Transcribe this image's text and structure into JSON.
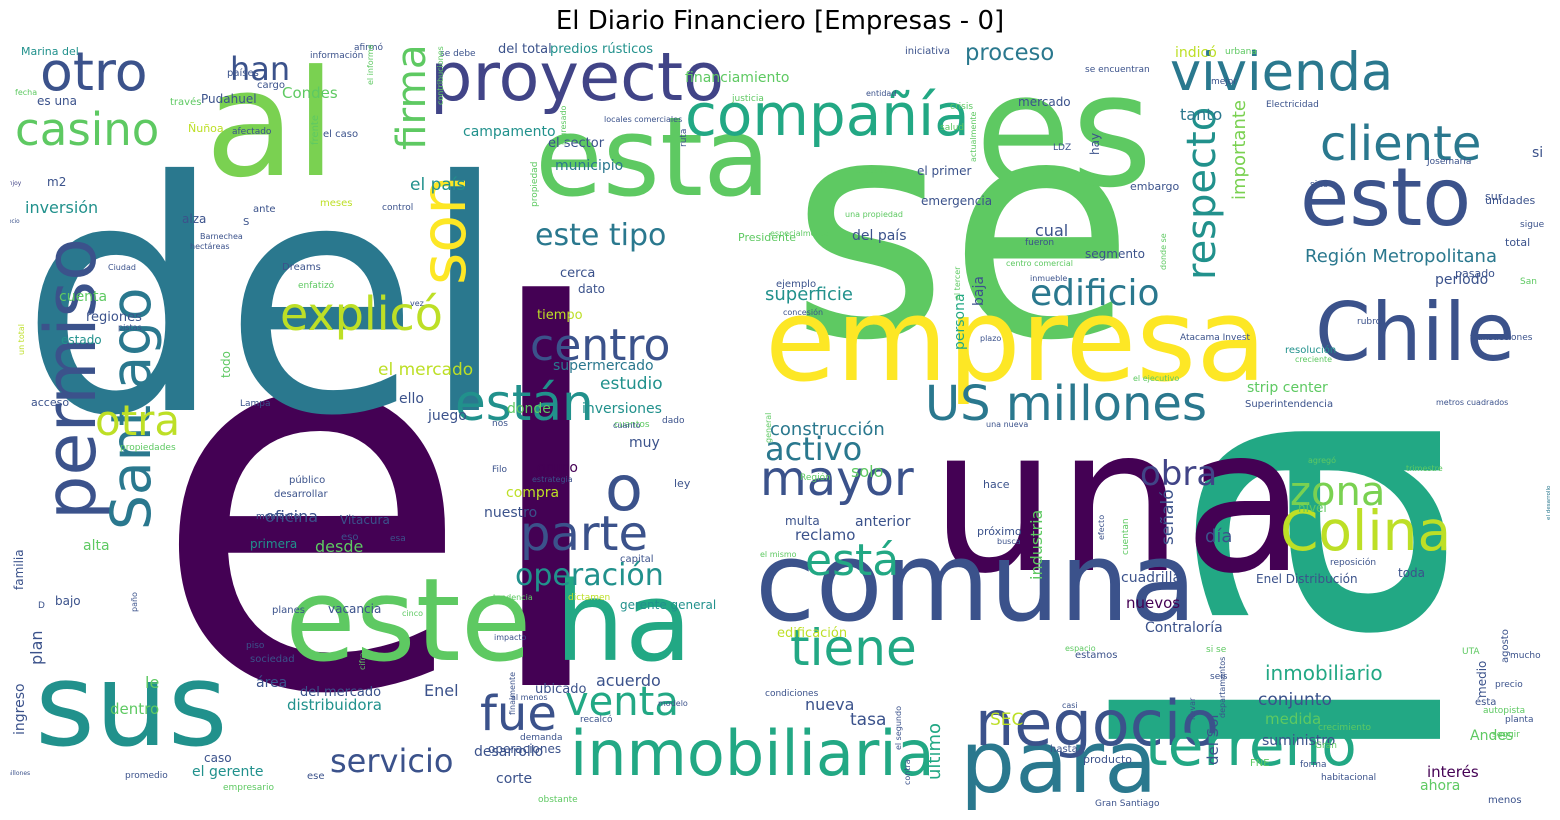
{
  "title": "El Diario Financiero [Empresas - 0]",
  "palette": [
    "#440154",
    "#3b528b",
    "#21918c",
    "#5ec962",
    "#fde725",
    "#2a788e",
    "#22a884",
    "#7ad151",
    "#414487",
    "#bddf26"
  ],
  "words": [
    {
      "text": "el",
      "color": "#440154"
    },
    {
      "text": "se",
      "color": "#5ec962"
    },
    {
      "text": "del",
      "color": "#2a788e"
    },
    {
      "text": "la",
      "color": "#22a884"
    },
    {
      "text": "una",
      "color": "#440154"
    },
    {
      "text": "para",
      "color": "#2a788e"
    },
    {
      "text": "proyecto",
      "color": "#414487"
    },
    {
      "text": "es",
      "color": "#5ec962"
    },
    {
      "text": "al",
      "color": "#7ad151"
    },
    {
      "text": "esta",
      "color": "#5ec962"
    },
    {
      "text": "empresa",
      "color": "#fde725"
    },
    {
      "text": "comuna",
      "color": "#3b528b"
    },
    {
      "text": "este",
      "color": "#5ec962"
    },
    {
      "text": "ha",
      "color": "#22a884"
    },
    {
      "text": "sus",
      "color": "#21918c"
    },
    {
      "text": "vivienda",
      "color": "#2a788e"
    },
    {
      "text": "otro",
      "color": "#3b528b"
    },
    {
      "text": "esto",
      "color": "#3b528b"
    },
    {
      "text": "Chile",
      "color": "#3b528b"
    },
    {
      "text": "permiso",
      "color": "#3b528b"
    },
    {
      "text": "inmobiliaria",
      "color": "#22a884"
    },
    {
      "text": "negocio",
      "color": "#3b528b"
    },
    {
      "text": "terreno",
      "color": "#22a884"
    },
    {
      "text": "millones",
      "color": "#3b528b"
    },
    {
      "text": "compañía",
      "color": "#22a884"
    },
    {
      "text": "son",
      "color": "#fde725"
    },
    {
      "text": "Santiago",
      "color": "#2a788e"
    },
    {
      "text": "proceso",
      "color": "#2a788e"
    },
    {
      "text": "cliente",
      "color": "#2a788e"
    },
    {
      "text": "US millones",
      "color": "#2a788e"
    },
    {
      "text": "Colina",
      "color": "#bddf26"
    },
    {
      "text": "o",
      "color": "#3b528b"
    },
    {
      "text": "parte",
      "color": "#3b528b"
    },
    {
      "text": "mayor",
      "color": "#3b528b"
    },
    {
      "text": "tiene",
      "color": "#22a884"
    },
    {
      "text": "están",
      "color": "#21918c"
    },
    {
      "text": "explicó",
      "color": "#bddf26"
    },
    {
      "text": "centro",
      "color": "#3b528b"
    },
    {
      "text": "casino",
      "color": "#5ec962"
    },
    {
      "text": "Enjoy",
      "color": "#414487"
    },
    {
      "text": "firma",
      "color": "#5ec962"
    },
    {
      "text": "respecto",
      "color": "#21918c"
    },
    {
      "text": "edificio",
      "color": "#2a788e"
    },
    {
      "text": "zona",
      "color": "#7ad151"
    },
    {
      "text": "fue",
      "color": "#3b528b"
    },
    {
      "text": "venta",
      "color": "#22a884"
    },
    {
      "text": "está",
      "color": "#22a884"
    },
    {
      "text": "operación",
      "color": "#21918c"
    },
    {
      "text": "otra",
      "color": "#bddf26"
    },
    {
      "text": "obra",
      "color": "#414487"
    },
    {
      "text": "este tipo",
      "color": "#2a788e"
    },
    {
      "text": "activo",
      "color": "#2a788e"
    },
    {
      "text": "el desarrollo",
      "color": "#2a788e"
    },
    {
      "text": "servicio",
      "color": "#3b528b"
    },
    {
      "text": "han",
      "color": "#3b528b"
    },
    {
      "text": "Región Metropolitana",
      "color": "#2a788e"
    },
    {
      "text": "importante",
      "color": "#7ad151"
    },
    {
      "text": "inmobiliario",
      "color": "#22a884"
    },
    {
      "text": "superficie",
      "color": "#21918c"
    },
    {
      "text": "construcción",
      "color": "#2a788e"
    },
    {
      "text": "el país",
      "color": "#21918c"
    },
    {
      "text": "el mercado",
      "color": "#bddf26"
    },
    {
      "text": "inversión",
      "color": "#21918c"
    },
    {
      "text": "estudio",
      "color": "#21918c"
    },
    {
      "text": "inversiones",
      "color": "#21918c"
    },
    {
      "text": "supermercado",
      "color": "#2a788e"
    },
    {
      "text": "Condes",
      "color": "#5ec962"
    },
    {
      "text": "campamento",
      "color": "#21918c"
    },
    {
      "text": "municipio",
      "color": "#2a788e"
    },
    {
      "text": "financiamiento",
      "color": "#5ec962"
    },
    {
      "text": "del total",
      "color": "#3b528b"
    },
    {
      "text": "predios rústicos",
      "color": "#21918c"
    },
    {
      "text": "indicó",
      "color": "#bddf26"
    },
    {
      "text": "tanto",
      "color": "#2a788e"
    },
    {
      "text": "cual",
      "color": "#3b528b"
    },
    {
      "text": "segmento",
      "color": "#3b528b"
    },
    {
      "text": "período",
      "color": "#3b528b"
    },
    {
      "text": "strip center",
      "color": "#5ec962"
    },
    {
      "text": "Contraloría",
      "color": "#3b528b"
    },
    {
      "text": "Enel Distribución",
      "color": "#3b528b"
    },
    {
      "text": "día",
      "color": "#3b528b"
    },
    {
      "text": "señaló",
      "color": "#3b528b"
    },
    {
      "text": "industria",
      "color": "#5ec962"
    },
    {
      "text": "cuadrilla",
      "color": "#3b528b"
    },
    {
      "text": "nuevos",
      "color": "#440154"
    },
    {
      "text": "conjunto",
      "color": "#3b528b"
    },
    {
      "text": "medida",
      "color": "#5ec962"
    },
    {
      "text": "suministro",
      "color": "#3b528b"
    },
    {
      "text": "del Sol",
      "color": "#3b528b"
    },
    {
      "text": "interés",
      "color": "#440154"
    },
    {
      "text": "ahora",
      "color": "#5ec962"
    },
    {
      "text": "Andes",
      "color": "#5ec962"
    },
    {
      "text": "SEC",
      "color": "#bddf26"
    },
    {
      "text": "último",
      "color": "#22a884"
    },
    {
      "text": "tasa",
      "color": "#3b528b"
    },
    {
      "text": "nueva",
      "color": "#3b528b"
    },
    {
      "text": "anterior",
      "color": "#3b528b"
    },
    {
      "text": "reclamo",
      "color": "#3b528b"
    },
    {
      "text": "multa",
      "color": "#3b528b"
    },
    {
      "text": "solo",
      "color": "#5ec962"
    },
    {
      "text": "grupo",
      "color": "#440154"
    },
    {
      "text": "compra",
      "color": "#bddf26"
    },
    {
      "text": "nuestro",
      "color": "#3b528b"
    },
    {
      "text": "desde",
      "color": "#5ec962"
    },
    {
      "text": "oficina",
      "color": "#3b528b"
    },
    {
      "text": "Vitacura",
      "color": "#3b528b"
    },
    {
      "text": "primera",
      "color": "#21918c"
    },
    {
      "text": "acuerdo",
      "color": "#3b528b"
    },
    {
      "text": "área",
      "color": "#3b528b"
    },
    {
      "text": "del mercado",
      "color": "#3b528b"
    },
    {
      "text": "distribuidora",
      "color": "#21918c"
    },
    {
      "text": "Enel",
      "color": "#3b528b"
    },
    {
      "text": "ubicado",
      "color": "#3b528b"
    },
    {
      "text": "desarrollo",
      "color": "#3b528b"
    },
    {
      "text": "corte",
      "color": "#3b528b"
    },
    {
      "text": "operaciones",
      "color": "#3b528b"
    },
    {
      "text": "el gerente",
      "color": "#21918c"
    },
    {
      "text": "caso",
      "color": "#3b528b"
    },
    {
      "text": "dentro",
      "color": "#5ec962"
    },
    {
      "text": "le",
      "color": "#5ec962"
    },
    {
      "text": "plan",
      "color": "#3b528b"
    },
    {
      "text": "ingreso",
      "color": "#3b528b"
    },
    {
      "text": "bajo",
      "color": "#3b528b"
    },
    {
      "text": "familia",
      "color": "#3b528b"
    },
    {
      "text": "alta",
      "color": "#5ec962"
    },
    {
      "text": "juego",
      "color": "#3b528b"
    },
    {
      "text": "donde",
      "color": "#5ec962"
    },
    {
      "text": "muy",
      "color": "#3b528b"
    },
    {
      "text": "ello",
      "color": "#3b528b"
    },
    {
      "text": "acceso",
      "color": "#3b528b"
    },
    {
      "text": "estado",
      "color": "#21918c"
    },
    {
      "text": "regiones",
      "color": "#3b528b"
    },
    {
      "text": "cuenta",
      "color": "#5ec962"
    },
    {
      "text": "alza",
      "color": "#3b528b"
    },
    {
      "text": "socio",
      "color": "#3b528b"
    },
    {
      "text": "m2",
      "color": "#3b528b"
    },
    {
      "text": "es una",
      "color": "#3b528b"
    },
    {
      "text": "Pudahuel",
      "color": "#3b528b"
    },
    {
      "text": "Marina del",
      "color": "#21918c"
    },
    {
      "text": "todo",
      "color": "#5ec962"
    },
    {
      "text": "tiempo",
      "color": "#bddf26"
    },
    {
      "text": "dato",
      "color": "#3b528b"
    },
    {
      "text": "cerca",
      "color": "#3b528b"
    },
    {
      "text": "el sector",
      "color": "#3b528b"
    },
    {
      "text": "baja",
      "color": "#3b528b"
    },
    {
      "text": "persona",
      "color": "#22a884"
    },
    {
      "text": "del país",
      "color": "#3b528b"
    },
    {
      "text": "emergencia",
      "color": "#3b528b"
    },
    {
      "text": "el primer",
      "color": "#3b528b"
    },
    {
      "text": "hay",
      "color": "#3b528b"
    },
    {
      "text": "mercado",
      "color": "#3b528b"
    },
    {
      "text": "embargo",
      "color": "#3b528b"
    },
    {
      "text": "si",
      "color": "#3b528b"
    },
    {
      "text": "sur",
      "color": "#3b528b"
    },
    {
      "text": "unidades",
      "color": "#3b528b"
    },
    {
      "text": "total",
      "color": "#3b528b"
    },
    {
      "text": "pasado",
      "color": "#3b528b"
    },
    {
      "text": "Presidente",
      "color": "#5ec962"
    },
    {
      "text": "ejemplo",
      "color": "#3b528b"
    },
    {
      "text": "Superintendencia",
      "color": "#3b528b"
    },
    {
      "text": "resolución",
      "color": "#21918c"
    },
    {
      "text": "toda",
      "color": "#3b528b"
    },
    {
      "text": "nivel",
      "color": "#5ec962"
    },
    {
      "text": "medio",
      "color": "#3b528b"
    },
    {
      "text": "agosto",
      "color": "#3b528b"
    },
    {
      "text": "hace",
      "color": "#3b528b"
    },
    {
      "text": "próximo",
      "color": "#3b528b"
    },
    {
      "text": "estamos",
      "color": "#3b528b"
    },
    {
      "text": "hasta",
      "color": "#3b528b"
    },
    {
      "text": "producto",
      "color": "#3b528b"
    },
    {
      "text": "gerente general",
      "color": "#21918c"
    },
    {
      "text": "planes",
      "color": "#3b528b"
    },
    {
      "text": "vacancia",
      "color": "#3b528b"
    },
    {
      "text": "sociedad",
      "color": "#3b528b"
    },
    {
      "text": "edificación",
      "color": "#bddf26"
    },
    {
      "text": "Dreams",
      "color": "#3b528b"
    },
    {
      "text": "Atacama Invest",
      "color": "#3b528b"
    },
    {
      "text": "LDZ",
      "color": "#3b528b"
    },
    {
      "text": "cuantos",
      "color": "#5ec962"
    },
    {
      "text": "ruta",
      "color": "#3b528b"
    },
    {
      "text": "frente",
      "color": "#5ec962"
    },
    {
      "text": "el caso",
      "color": "#3b528b"
    },
    {
      "text": "ante",
      "color": "#3b528b"
    },
    {
      "text": "meses",
      "color": "#bddf26"
    },
    {
      "text": "control",
      "color": "#3b528b"
    },
    {
      "text": "S",
      "color": "#3b528b"
    },
    {
      "text": "público",
      "color": "#3b528b"
    },
    {
      "text": "desarrollar",
      "color": "#3b528b"
    },
    {
      "text": "momento",
      "color": "#3b528b"
    },
    {
      "text": "eso",
      "color": "#3b528b"
    },
    {
      "text": "esa",
      "color": "#3b528b"
    },
    {
      "text": "capital",
      "color": "#3b528b"
    },
    {
      "text": "mucho",
      "color": "#3b528b"
    },
    {
      "text": "ésta",
      "color": "#3b528b"
    },
    {
      "text": "menos",
      "color": "#3b528b"
    },
    {
      "text": "seguir",
      "color": "#5ec962"
    },
    {
      "text": "seis",
      "color": "#3b528b"
    },
    {
      "text": "fueron",
      "color": "#3b528b"
    },
    {
      "text": "rubro",
      "color": "#3b528b"
    },
    {
      "text": "transacciones",
      "color": "#3b528b"
    },
    {
      "text": "precio",
      "color": "#3b528b"
    },
    {
      "text": "planta",
      "color": "#3b528b"
    },
    {
      "text": "forma",
      "color": "#3b528b"
    },
    {
      "text": "habitacional",
      "color": "#3b528b"
    },
    {
      "text": "Gran Santiago",
      "color": "#3b528b"
    },
    {
      "text": "promedio",
      "color": "#3b528b"
    },
    {
      "text": "ese",
      "color": "#3b528b"
    },
    {
      "text": "empresario",
      "color": "#5ec962"
    },
    {
      "text": "obstante",
      "color": "#5ec962"
    },
    {
      "text": "Electricidad",
      "color": "#3b528b"
    },
    {
      "text": "Josemaría",
      "color": "#3b528b"
    },
    {
      "text": "sino",
      "color": "#3b528b"
    },
    {
      "text": "sigue",
      "color": "#3b528b"
    },
    {
      "text": "San",
      "color": "#5ec962"
    },
    {
      "text": "mejor",
      "color": "#3b528b"
    },
    {
      "text": "urbana",
      "color": "#5ec962"
    },
    {
      "text": "crisis",
      "color": "#5ec962"
    },
    {
      "text": "salud",
      "color": "#5ec962"
    },
    {
      "text": "entidad",
      "color": "#3b528b"
    },
    {
      "text": "justicia",
      "color": "#5ec962"
    },
    {
      "text": "iniciativa",
      "color": "#3b528b"
    },
    {
      "text": "se debe",
      "color": "#3b528b"
    },
    {
      "text": "se encuentran",
      "color": "#3b528b"
    },
    {
      "text": "información",
      "color": "#3b528b"
    },
    {
      "text": "afirmó",
      "color": "#3b528b"
    },
    {
      "text": "países",
      "color": "#3b528b"
    },
    {
      "text": "cargo",
      "color": "#3b528b"
    },
    {
      "text": "través",
      "color": "#5ec962"
    },
    {
      "text": "Ñuñoa",
      "color": "#bddf26"
    },
    {
      "text": "afectado",
      "color": "#3b528b"
    },
    {
      "text": "fecha",
      "color": "#5ec962"
    },
    {
      "text": "el informe",
      "color": "#5ec962"
    },
    {
      "text": "Barnechea",
      "color": "#3b528b"
    },
    {
      "text": "hectáreas",
      "color": "#3b528b"
    },
    {
      "text": "Ciudad",
      "color": "#3b528b"
    },
    {
      "text": "pistas",
      "color": "#3b528b"
    },
    {
      "text": "vez",
      "color": "#3b528b"
    },
    {
      "text": "enfatizó",
      "color": "#5ec962"
    },
    {
      "text": "un total",
      "color": "#bddf26"
    },
    {
      "text": "propiedades",
      "color": "#5ec962"
    },
    {
      "text": "Lampa",
      "color": "#3b528b"
    },
    {
      "text": "nos",
      "color": "#3b528b"
    },
    {
      "text": "cuanto",
      "color": "#3b528b"
    },
    {
      "text": "dado",
      "color": "#3b528b"
    },
    {
      "text": "ley",
      "color": "#3b528b"
    },
    {
      "text": "Filo",
      "color": "#3b528b"
    },
    {
      "text": "estrategia",
      "color": "#3b528b"
    },
    {
      "text": "impacto",
      "color": "#3b528b"
    },
    {
      "text": "tendencia",
      "color": "#5ec962"
    },
    {
      "text": "dictamen",
      "color": "#bddf26"
    },
    {
      "text": "cinco",
      "color": "#5ec962"
    },
    {
      "text": "piso",
      "color": "#3b528b"
    },
    {
      "text": "cifra",
      "color": "#5ec962"
    },
    {
      "text": "finalmente",
      "color": "#3b528b"
    },
    {
      "text": "al menos",
      "color": "#3b528b"
    },
    {
      "text": "modelo",
      "color": "#3b528b"
    },
    {
      "text": "recalcó",
      "color": "#3b528b"
    },
    {
      "text": "condiciones",
      "color": "#3b528b"
    },
    {
      "text": "el segundo",
      "color": "#3b528b"
    },
    {
      "text": "contra",
      "color": "#3b528b"
    },
    {
      "text": "casi",
      "color": "#3b528b"
    },
    {
      "text": "llevar",
      "color": "#3b528b"
    },
    {
      "text": "departamentos",
      "color": "#3b528b"
    },
    {
      "text": "crecimiento",
      "color": "#5ec962"
    },
    {
      "text": "Gran",
      "color": "#5ec962"
    },
    {
      "text": "FNE",
      "color": "#5ec962"
    },
    {
      "text": "si se",
      "color": "#5ec962"
    },
    {
      "text": "espacio",
      "color": "#5ec962"
    },
    {
      "text": "UTA",
      "color": "#5ec962"
    },
    {
      "text": "autopista",
      "color": "#5ec962"
    },
    {
      "text": "agregó",
      "color": "#5ec962"
    },
    {
      "text": "trimestre",
      "color": "#5ec962"
    },
    {
      "text": "reposición",
      "color": "#3b528b"
    },
    {
      "text": "efecto",
      "color": "#3b528b"
    },
    {
      "text": "cuentan",
      "color": "#5ec962"
    },
    {
      "text": "busca",
      "color": "#3b528b"
    },
    {
      "text": "el mismo",
      "color": "#5ec962"
    },
    {
      "text": "Región",
      "color": "#5ec962"
    },
    {
      "text": "centro comercial",
      "color": "#5ec962"
    },
    {
      "text": "especialmente",
      "color": "#5ec962"
    },
    {
      "text": "una propiedad",
      "color": "#5ec962"
    },
    {
      "text": "concesión",
      "color": "#3b528b"
    },
    {
      "text": "plazo",
      "color": "#3b528b"
    },
    {
      "text": "el tercer",
      "color": "#5ec962"
    },
    {
      "text": "donde se",
      "color": "#5ec962"
    },
    {
      "text": "inmueble",
      "color": "#3b528b"
    },
    {
      "text": "el ejecutivo",
      "color": "#5ec962"
    },
    {
      "text": "metros cuadrados",
      "color": "#3b528b"
    },
    {
      "text": "creciente",
      "color": "#5ec962"
    },
    {
      "text": "una nueva",
      "color": "#3b528b"
    },
    {
      "text": "general",
      "color": "#5ec962"
    },
    {
      "text": "locales comerciales",
      "color": "#3b528b"
    },
    {
      "text": "propiedad",
      "color": "#5ec962"
    },
    {
      "text": "ingresado",
      "color": "#5ec962"
    },
    {
      "text": "contribuciones",
      "color": "#5ec962"
    },
    {
      "text": "eléctrica",
      "color": "#5ec962"
    },
    {
      "text": "actualmente",
      "color": "#5ec962"
    },
    {
      "text": "D",
      "color": "#3b528b"
    },
    {
      "text": "paño",
      "color": "#3b528b"
    },
    {
      "text": "demanda",
      "color": "#3b528b"
    }
  ]
}
